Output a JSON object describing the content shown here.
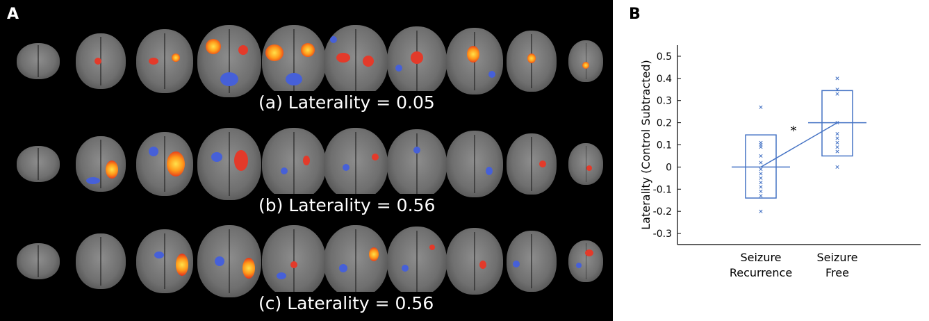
{
  "panel_a": {
    "letter": "A",
    "captions": [
      "(a) Laterality = 0.05",
      "(b) Laterality = 0.56",
      "(c) Laterality = 0.56"
    ]
  },
  "panel_b": {
    "letter": "B"
  },
  "chart_data": {
    "type": "box",
    "ylabel": "Laterality (Control Subtracted)",
    "xlabel": "",
    "ylim": [
      -0.35,
      0.55
    ],
    "yticks": [
      -0.3,
      -0.2,
      -0.1,
      0,
      0.1,
      0.2,
      0.3,
      0.4,
      0.5
    ],
    "ytick_labels": [
      "-0.3",
      "-0.2",
      "-0.1",
      "0",
      "0.1",
      "0.2",
      "0.3",
      "0.4",
      "0.5"
    ],
    "categories": [
      [
        "Seizure",
        "Recurrence"
      ],
      [
        "Seizure",
        "Free"
      ]
    ],
    "groups": [
      {
        "category": "Seizure Recurrence",
        "mean": 0.0,
        "box_low": -0.14,
        "box_high": 0.145,
        "points": [
          0.27,
          0.11,
          0.1,
          0.09,
          0.05,
          0.02,
          -0.01,
          -0.03,
          -0.05,
          -0.07,
          -0.09,
          -0.11,
          -0.13,
          -0.2
        ]
      },
      {
        "category": "Seizure Free",
        "mean": 0.2,
        "box_low": 0.05,
        "box_high": 0.345,
        "points": [
          0.4,
          0.35,
          0.33,
          0.2,
          0.15,
          0.13,
          0.11,
          0.09,
          0.07,
          0.0
        ]
      }
    ],
    "significance_marker": "*",
    "color": "#4472c4"
  }
}
